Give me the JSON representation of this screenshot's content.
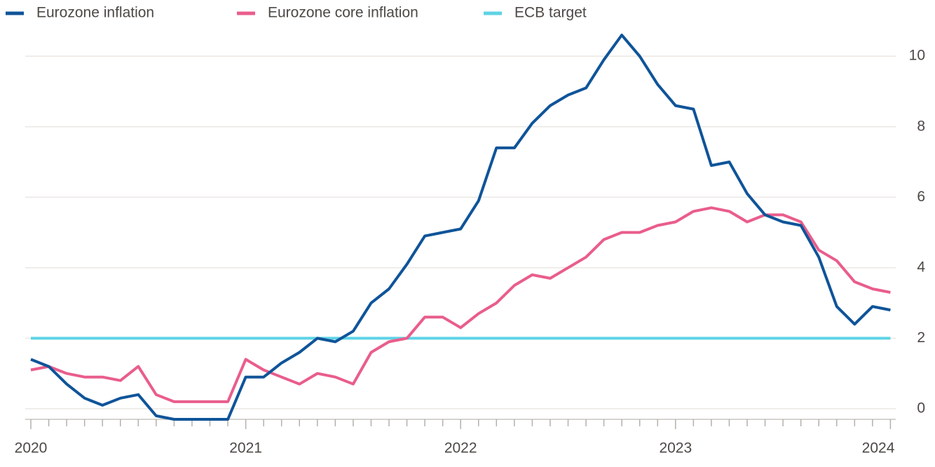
{
  "chart_data": {
    "type": "line",
    "categories": [
      "2020",
      null,
      null,
      null,
      null,
      null,
      null,
      null,
      null,
      null,
      null,
      null,
      "2021",
      null,
      null,
      null,
      null,
      null,
      null,
      null,
      null,
      null,
      null,
      null,
      "2022",
      null,
      null,
      null,
      null,
      null,
      null,
      null,
      null,
      null,
      null,
      null,
      "2023",
      null,
      null,
      null,
      null,
      null,
      null,
      null,
      null,
      null,
      null,
      null,
      "2024"
    ],
    "series": [
      {
        "name": "Eurozone inflation",
        "color": "#0f5499",
        "values": [
          1.4,
          1.2,
          0.7,
          0.3,
          0.1,
          0.3,
          0.4,
          -0.2,
          -0.3,
          -0.3,
          -0.3,
          -0.3,
          0.9,
          0.9,
          1.3,
          1.6,
          2.0,
          1.9,
          2.2,
          3.0,
          3.4,
          4.1,
          4.9,
          5.0,
          5.1,
          5.9,
          7.4,
          7.4,
          8.1,
          8.6,
          8.9,
          9.1,
          9.9,
          10.6,
          10.0,
          9.2,
          8.6,
          8.5,
          6.9,
          7.0,
          6.1,
          5.5,
          5.3,
          5.2,
          4.3,
          2.9,
          2.4,
          2.9,
          2.8
        ]
      },
      {
        "name": "Eurozone core inflation",
        "color": "#e95d8c",
        "values": [
          1.1,
          1.2,
          1.0,
          0.9,
          0.9,
          0.8,
          1.2,
          0.4,
          0.2,
          0.2,
          0.2,
          0.2,
          1.4,
          1.1,
          0.9,
          0.7,
          1.0,
          0.9,
          0.7,
          1.6,
          1.9,
          2.0,
          2.6,
          2.6,
          2.3,
          2.7,
          3.0,
          3.5,
          3.8,
          3.7,
          4.0,
          4.3,
          4.8,
          5.0,
          5.0,
          5.2,
          5.3,
          5.6,
          5.7,
          5.6,
          5.3,
          5.5,
          5.5,
          5.3,
          4.5,
          4.2,
          3.6,
          3.4,
          3.3
        ]
      },
      {
        "name": "ECB target",
        "color": "#5ed3e5",
        "values": [
          2,
          2,
          2,
          2,
          2,
          2,
          2,
          2,
          2,
          2,
          2,
          2,
          2,
          2,
          2,
          2,
          2,
          2,
          2,
          2,
          2,
          2,
          2,
          2,
          2,
          2,
          2,
          2,
          2,
          2,
          2,
          2,
          2,
          2,
          2,
          2,
          2,
          2,
          2,
          2,
          2,
          2,
          2,
          2,
          2,
          2,
          2,
          2,
          2
        ]
      }
    ],
    "ylim": [
      -0.3,
      10.6
    ],
    "yticks": [
      0,
      2,
      4,
      6,
      8,
      10
    ],
    "grid": true,
    "legend": "top-left"
  }
}
